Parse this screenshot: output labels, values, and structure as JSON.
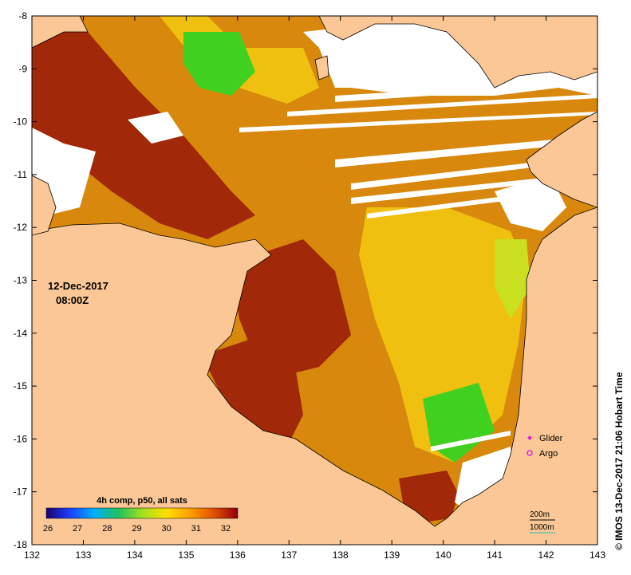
{
  "map": {
    "date_label": "12-Dec-2017",
    "time_label": "08:00Z",
    "credit": "© IMOS 13-Dec-2017 21:06 Hobart Time",
    "x_axis": {
      "min": 132,
      "max": 143,
      "ticks": [
        "132",
        "133",
        "134",
        "135",
        "136",
        "137",
        "138",
        "139",
        "140",
        "141",
        "142",
        "143"
      ]
    },
    "y_axis": {
      "min": -18,
      "max": -8,
      "ticks": [
        "-8",
        "-9",
        "-10",
        "-11",
        "-12",
        "-13",
        "-14",
        "-15",
        "-16",
        "-17",
        "-18"
      ]
    }
  },
  "legend": {
    "symbols": [
      {
        "label": "Glider",
        "color": "#e020e0",
        "shape": "diamond"
      },
      {
        "label": "Argo",
        "color": "#e020e0",
        "shape": "ring"
      }
    ],
    "contours": [
      {
        "label": "200m",
        "color": "#000000"
      },
      {
        "label": "1000m",
        "color": "#20c0c0"
      }
    ]
  },
  "colorbar": {
    "title": "4h comp, p50, all sats",
    "min": 26,
    "max": 32,
    "tick_labels": [
      "26",
      "27",
      "28",
      "29",
      "30",
      "31",
      "32"
    ],
    "stops": [
      "#1a0070",
      "#1a40ff",
      "#00b0ff",
      "#20c060",
      "#a0e020",
      "#ffe000",
      "#ffa000",
      "#e05000",
      "#900010"
    ]
  },
  "colors": {
    "land": "#fbc796",
    "no_data": "#ffffff",
    "sst_hot": "#a12808",
    "sst_warm": "#d8880c",
    "sst_mid": "#f0c010",
    "sst_cool": "#c8e020",
    "sst_green": "#40d020"
  }
}
